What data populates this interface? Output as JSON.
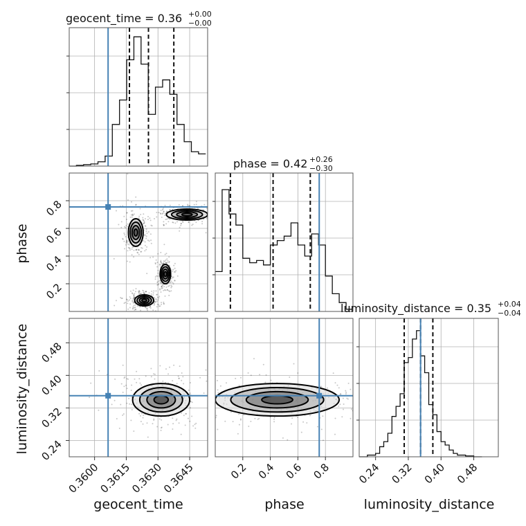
{
  "chart_data": {
    "type": "corner",
    "parameters": [
      {
        "name": "geocent_time",
        "label": "geocent_time",
        "range": [
          0.3588,
          0.36535
        ],
        "ticks": [
          "0.3600",
          "0.3615",
          "0.3630",
          "0.3645"
        ],
        "tick_values": [
          0.36,
          0.3615,
          0.363,
          0.3645
        ],
        "truth": 0.36064
      },
      {
        "name": "phase",
        "label": "phase",
        "range": [
          0.0,
          1.0
        ],
        "ticks": [
          "0.2",
          "0.4",
          "0.6",
          "0.8"
        ],
        "tick_values": [
          0.2,
          0.4,
          0.6,
          0.8
        ],
        "truth": 0.755
      },
      {
        "name": "luminosity_distance",
        "label": "luminosity_distance",
        "range": [
          0.2,
          0.54
        ],
        "ticks": [
          "0.24",
          "0.32",
          "0.40",
          "0.48"
        ],
        "tick_values": [
          0.24,
          0.32,
          0.4,
          0.48
        ],
        "truth": 0.35
      }
    ],
    "titles": [
      {
        "text": "geocent_time = 0.36",
        "sup": "+0.00",
        "sub": "−0.00"
      },
      {
        "text": "phase = 0.42",
        "sup": "+0.26",
        "sub": "−0.30"
      },
      {
        "text": "luminosity_distance = 0.35",
        "sup": "+0.04",
        "sub": "−0.04"
      }
    ],
    "marginals": [
      {
        "param": "geocent_time",
        "quantiles": [
          0.36165,
          0.36255,
          0.36375
        ],
        "bins": [
          0.3588,
          0.35914,
          0.35948,
          0.35982,
          0.36016,
          0.3605,
          0.36084,
          0.36118,
          0.36152,
          0.36186,
          0.3622,
          0.36254,
          0.36288,
          0.36322,
          0.36356,
          0.3639,
          0.36424,
          0.36458,
          0.36492,
          0.36526
        ],
        "heights": [
          0,
          1,
          2,
          3,
          6,
          14,
          58,
          92,
          148,
          180,
          142,
          72,
          110,
          120,
          100,
          58,
          34,
          20,
          17
        ],
        "ymax": 185
      },
      {
        "param": "phase",
        "quantiles": [
          0.11,
          0.42,
          0.69
        ],
        "bins": [
          0.0,
          0.05,
          0.1,
          0.15,
          0.2,
          0.25,
          0.3,
          0.35,
          0.4,
          0.45,
          0.5,
          0.55,
          0.6,
          0.65,
          0.7,
          0.75,
          0.8,
          0.85,
          0.9,
          0.95,
          1.0
        ],
        "heights": [
          36,
          110,
          88,
          78,
          48,
          44,
          46,
          42,
          60,
          64,
          68,
          80,
          60,
          50,
          70,
          60,
          32,
          16,
          8,
          2
        ],
        "ymax": 120
      },
      {
        "param": "luminosity_distance",
        "quantiles": [
          0.31,
          0.35,
          0.38
        ],
        "bins": [
          0.2,
          0.21,
          0.22,
          0.23,
          0.24,
          0.25,
          0.26,
          0.27,
          0.28,
          0.29,
          0.3,
          0.31,
          0.32,
          0.33,
          0.34,
          0.35,
          0.36,
          0.37,
          0.38,
          0.39,
          0.4,
          0.41,
          0.42,
          0.43,
          0.44,
          0.45,
          0.46,
          0.47,
          0.48,
          0.49,
          0.5
        ],
        "heights": [
          0,
          0,
          2,
          2,
          4,
          12,
          18,
          28,
          48,
          60,
          75,
          112,
          118,
          140,
          150,
          120,
          100,
          62,
          50,
          30,
          18,
          14,
          8,
          4,
          2,
          2,
          1,
          1,
          0,
          0
        ],
        "ymax": 158
      }
    ],
    "pairs": [
      {
        "x": "geocent_time",
        "y": "phase",
        "contour_regions": [
          {
            "x": [
              0.3616,
              0.3623
            ],
            "y": [
              0.47,
              0.67
            ]
          },
          {
            "x": [
              0.3631,
              0.3636
            ],
            "y": [
              0.2,
              0.34
            ]
          },
          {
            "x": [
              0.3619,
              0.3628
            ],
            "y": [
              0.04,
              0.12
            ]
          },
          {
            "x": [
              0.3634,
              0.36535
            ],
            "y": [
              0.66,
              0.74
            ]
          }
        ]
      },
      {
        "x": "geocent_time",
        "y": "luminosity_distance",
        "contour_regions": [
          {
            "x": [
              0.3618,
              0.3645
            ],
            "y": [
              0.3,
              0.38
            ]
          }
        ]
      },
      {
        "x": "phase",
        "y": "luminosity_distance",
        "contour_regions": [
          {
            "x": [
              0.0,
              0.9
            ],
            "y": [
              0.3,
              0.38
            ]
          }
        ]
      }
    ]
  }
}
